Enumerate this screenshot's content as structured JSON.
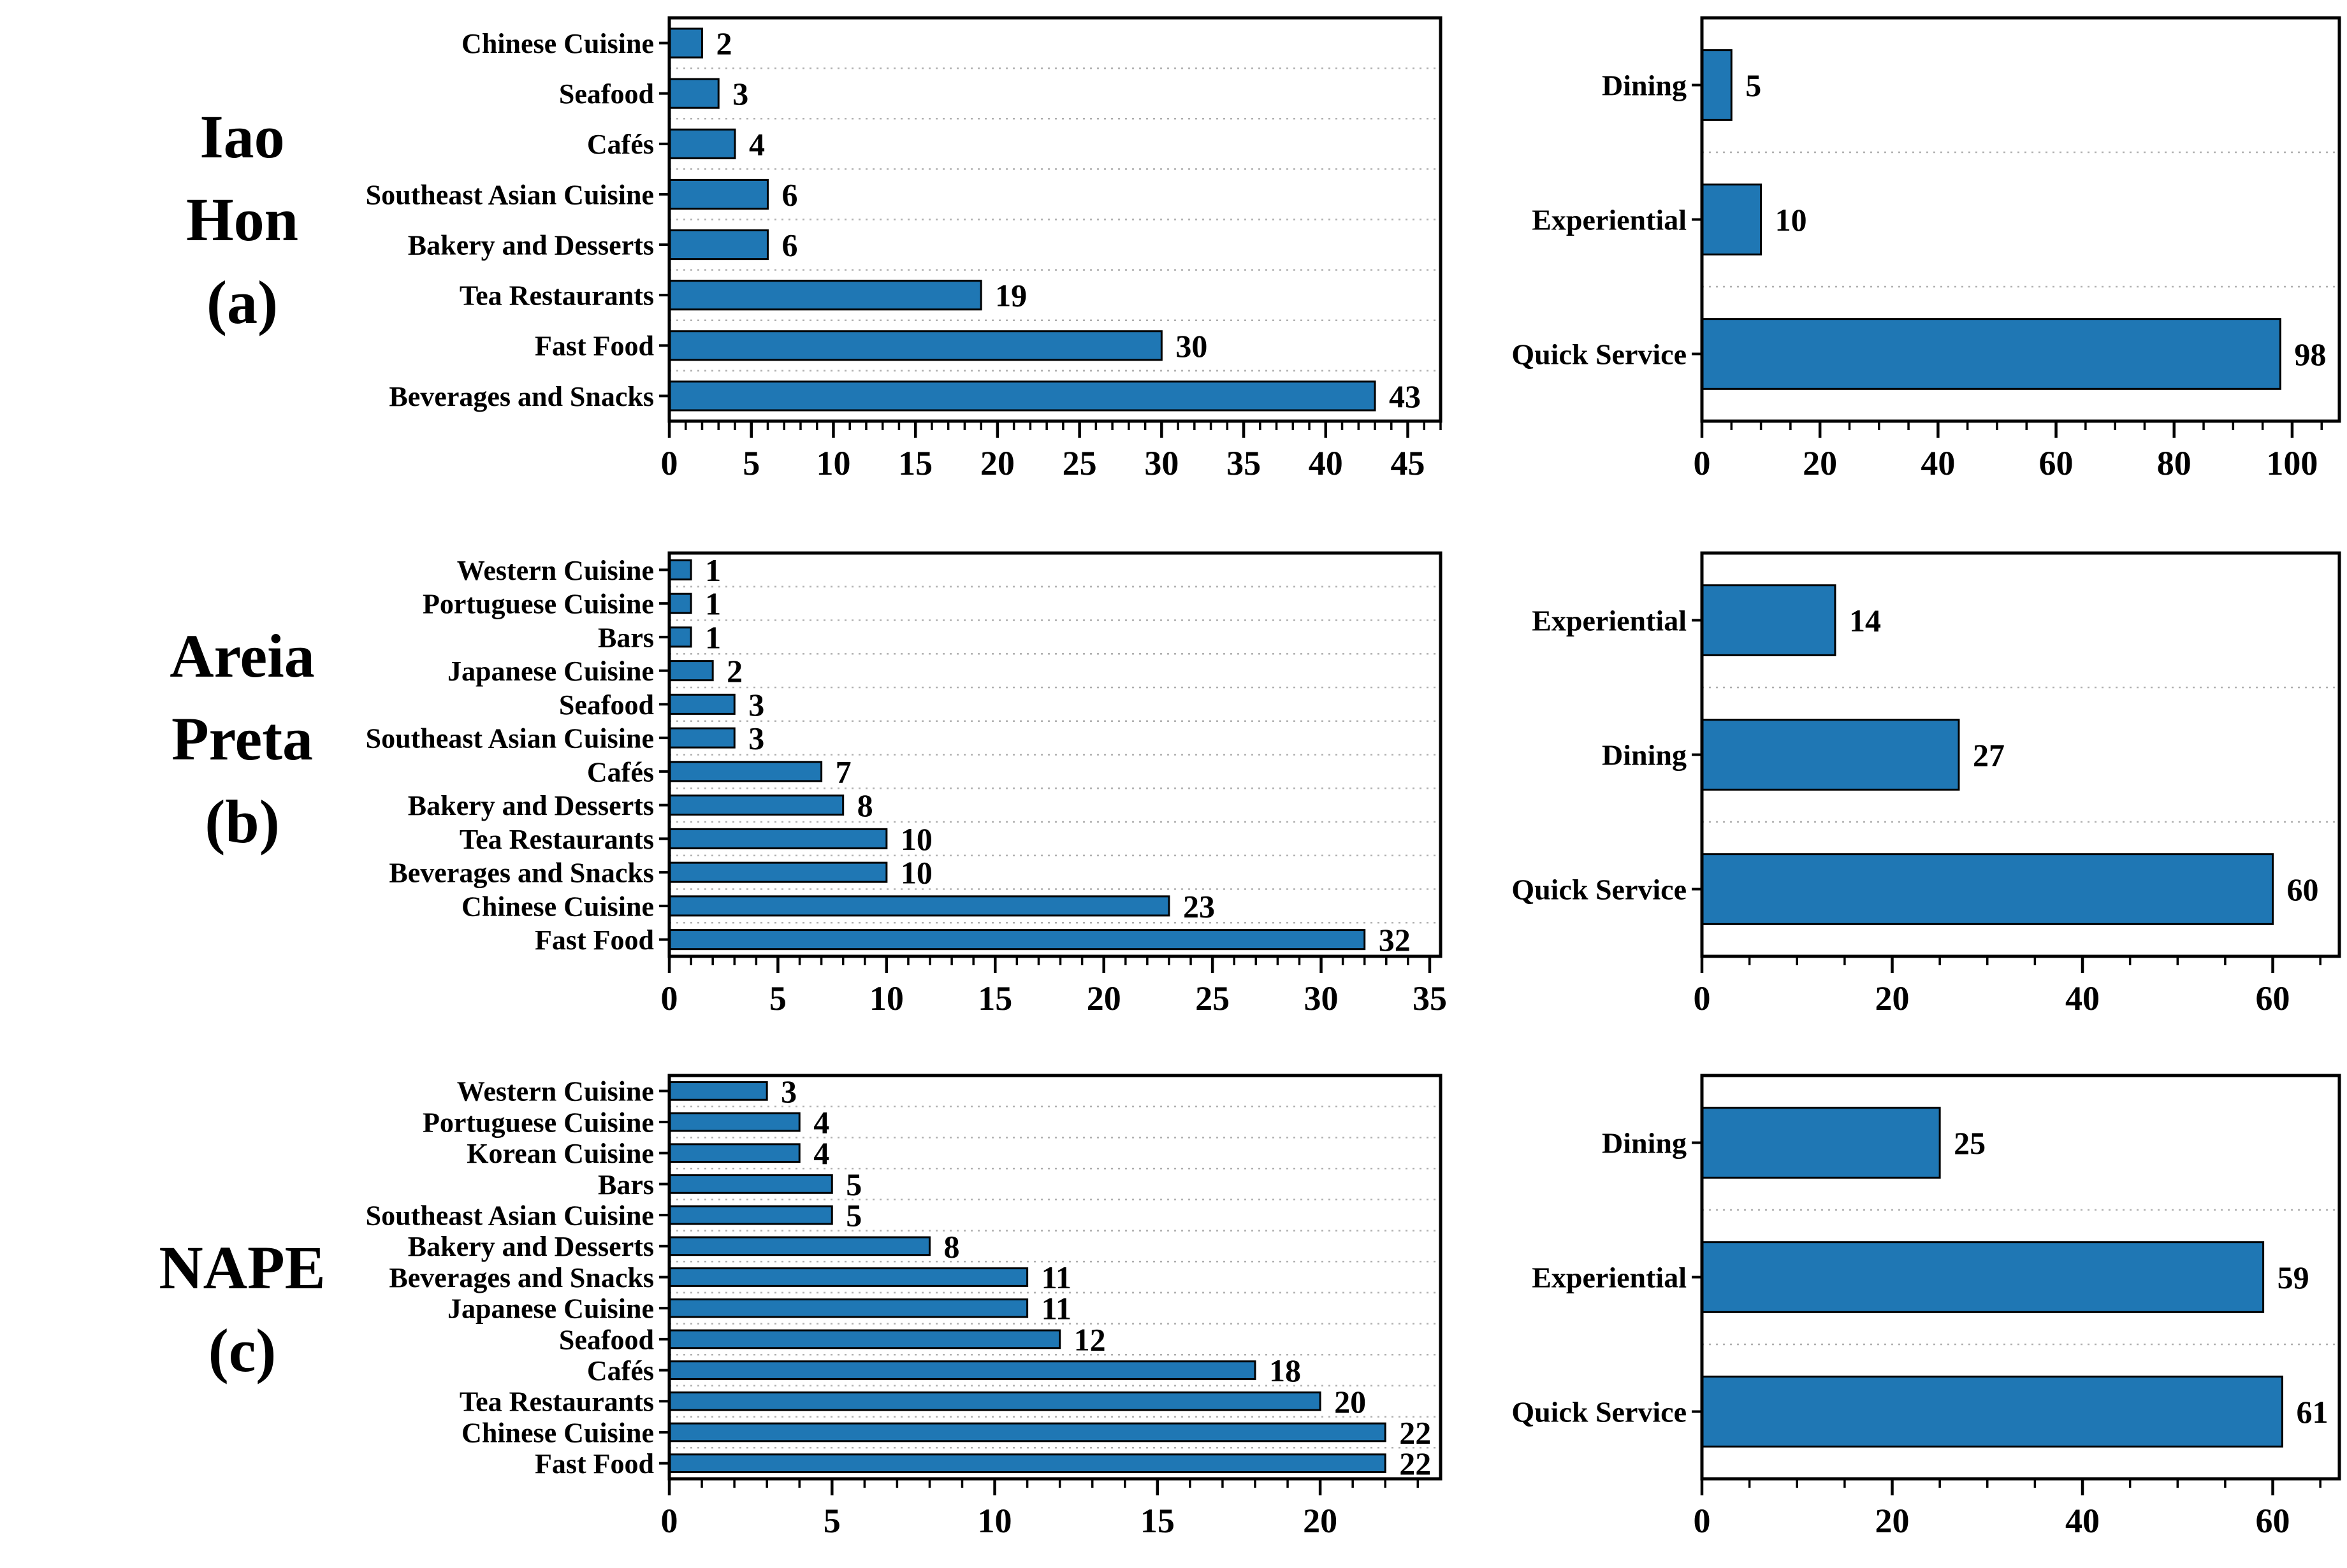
{
  "style": {
    "bar_fill": "#1f77b4",
    "bar_stroke": "#000000",
    "grid_color": "#b0b0b0",
    "axis_color": "#000000",
    "text_color": "#000000"
  },
  "rows": [
    {
      "name": "iao-hon",
      "label_lines": [
        "Iao",
        "Hon",
        "(a)"
      ]
    },
    {
      "name": "areia-preta",
      "label_lines": [
        "Areia",
        "Preta",
        "(b)"
      ]
    },
    {
      "name": "nape",
      "label_lines": [
        "NAPE",
        "(c)"
      ]
    }
  ],
  "chart_data": [
    {
      "name": "iao-hon-by-cuisine",
      "type": "bar",
      "orientation": "horizontal",
      "categories": [
        "Chinese Cuisine",
        "Seafood",
        "Cafés",
        "Southeast Asian Cuisine",
        "Bakery and Desserts",
        "Tea Restaurants",
        "Fast Food",
        "Beverages and Snacks"
      ],
      "values": [
        2,
        3,
        4,
        6,
        6,
        19,
        30,
        43
      ],
      "title": "",
      "xlabel": "",
      "ylabel": "",
      "xlim": [
        0,
        47
      ],
      "xticks": [
        0,
        5,
        10,
        15,
        20,
        25,
        30,
        35,
        40,
        45
      ],
      "minor_tick_step": 1,
      "grid": "dotted-between-categories",
      "value_labels": true
    },
    {
      "name": "iao-hon-by-service",
      "type": "bar",
      "orientation": "horizontal",
      "categories": [
        "Dining",
        "Experiential",
        "Quick Service"
      ],
      "values": [
        5,
        10,
        98
      ],
      "title": "",
      "xlabel": "",
      "ylabel": "",
      "xlim": [
        0,
        108
      ],
      "xticks": [
        0,
        20,
        40,
        60,
        80,
        100
      ],
      "minor_tick_step": 5,
      "grid": "dotted-between-categories",
      "value_labels": true
    },
    {
      "name": "areia-preta-by-cuisine",
      "type": "bar",
      "orientation": "horizontal",
      "categories": [
        "Western Cuisine",
        "Portuguese Cuisine",
        "Bars",
        "Japanese Cuisine",
        "Seafood",
        "Southeast Asian Cuisine",
        "Cafés",
        "Bakery and Desserts",
        "Tea Restaurants",
        "Beverages and Snacks",
        "Chinese Cuisine",
        "Fast Food"
      ],
      "values": [
        1,
        1,
        1,
        2,
        3,
        3,
        7,
        8,
        10,
        10,
        23,
        32
      ],
      "title": "",
      "xlabel": "",
      "ylabel": "",
      "xlim": [
        0,
        35.5
      ],
      "xticks": [
        0,
        5,
        10,
        15,
        20,
        25,
        30,
        35
      ],
      "minor_tick_step": 1,
      "grid": "dotted-between-categories",
      "value_labels": true
    },
    {
      "name": "areia-preta-by-service",
      "type": "bar",
      "orientation": "horizontal",
      "categories": [
        "Experiential",
        "Dining",
        "Quick Service"
      ],
      "values": [
        14,
        27,
        60
      ],
      "title": "",
      "xlabel": "",
      "ylabel": "",
      "xlim": [
        0,
        67
      ],
      "xticks": [
        0,
        20,
        40,
        60
      ],
      "minor_tick_step": 5,
      "grid": "dotted-between-categories",
      "value_labels": true
    },
    {
      "name": "nape-by-cuisine",
      "type": "bar",
      "orientation": "horizontal",
      "categories": [
        "Western Cuisine",
        "Portuguese Cuisine",
        "Korean Cuisine",
        "Bars",
        "Southeast Asian Cuisine",
        "Bakery and Desserts",
        "Beverages and Snacks",
        "Japanese Cuisine",
        "Seafood",
        "Cafés",
        "Tea Restaurants",
        "Chinese Cuisine",
        "Fast Food"
      ],
      "values": [
        3,
        4,
        4,
        5,
        5,
        8,
        11,
        11,
        12,
        18,
        20,
        22,
        22
      ],
      "title": "",
      "xlabel": "",
      "ylabel": "",
      "xlim": [
        0,
        23.7
      ],
      "xticks": [
        0,
        5,
        10,
        15,
        20
      ],
      "minor_tick_step": 1,
      "grid": "dotted-between-categories",
      "value_labels": true
    },
    {
      "name": "nape-by-service",
      "type": "bar",
      "orientation": "horizontal",
      "categories": [
        "Dining",
        "Experiential",
        "Quick Service"
      ],
      "values": [
        25,
        59,
        61
      ],
      "title": "",
      "xlabel": "",
      "ylabel": "",
      "xlim": [
        0,
        67
      ],
      "xticks": [
        0,
        20,
        40,
        60
      ],
      "minor_tick_step": 5,
      "grid": "dotted-between-categories",
      "value_labels": true
    }
  ]
}
